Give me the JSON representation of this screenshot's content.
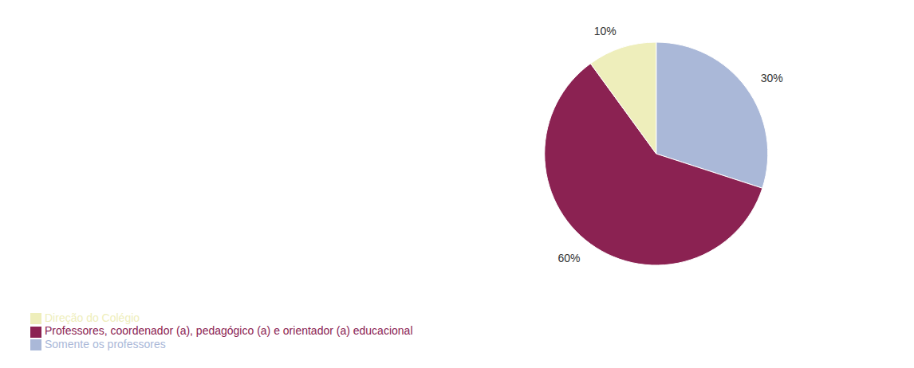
{
  "chart_data": {
    "type": "pie",
    "categories": [
      "Somente os professores",
      "Professores, coordenador (a), pedagógico (a) e orientador (a) educacional",
      "Direção do Colégio"
    ],
    "values": [
      30,
      60,
      10
    ],
    "value_labels": [
      "30%",
      "60%",
      "10%"
    ],
    "colors": [
      "#aab8d8",
      "#8b2252",
      "#eeeebb"
    ],
    "data_labels": true,
    "legend": "lower left"
  }
}
